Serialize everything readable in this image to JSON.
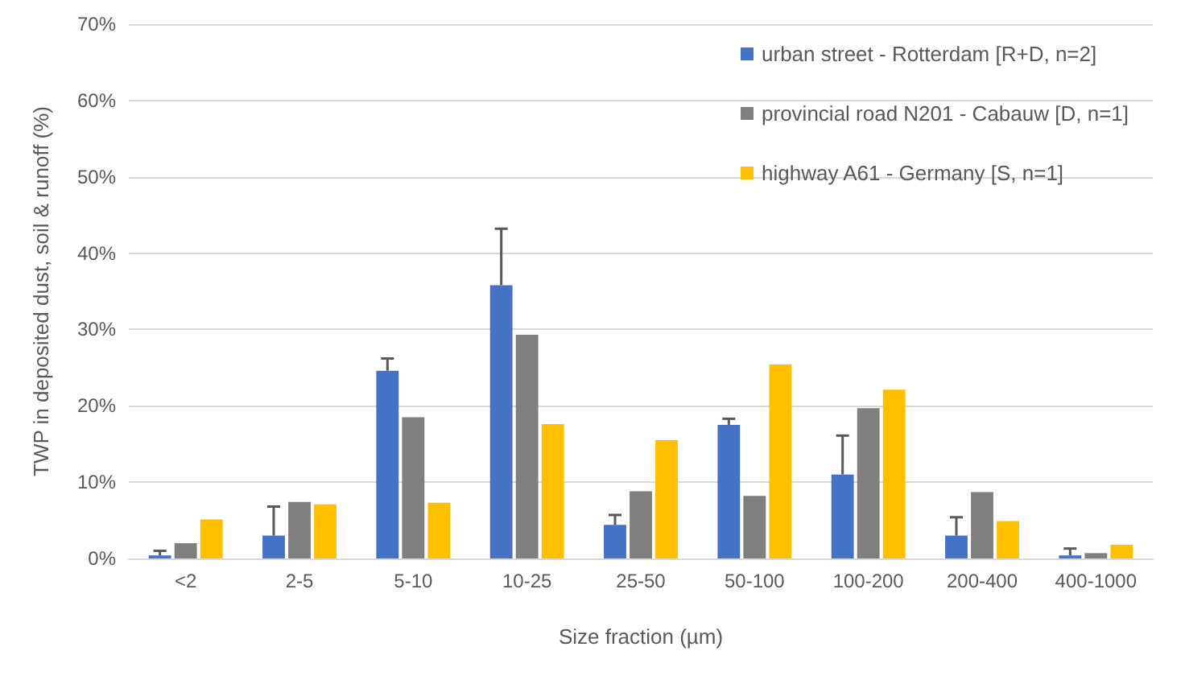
{
  "chart_data": {
    "type": "bar",
    "xlabel": "Size fraction (µm)",
    "ylabel": "TWP in deposited dust, soil & runoff (%)",
    "categories": [
      "<2",
      "2-5",
      "5-10",
      "10-25",
      "25-50",
      "50-100",
      "100-200",
      "200-400",
      "400-1000"
    ],
    "series": [
      {
        "name": "urban street - Rotterdam [R+D, n=2]",
        "color": "#4472c4",
        "values": [
          0.4,
          3.0,
          24.6,
          35.8,
          4.4,
          17.5,
          11.0,
          3.0,
          0.4
        ],
        "errors": [
          [
            0.4,
            1.0
          ],
          [
            3.0,
            6.8
          ],
          [
            24.6,
            26.2
          ],
          [
            35.8,
            43.2
          ],
          [
            4.4,
            5.7
          ],
          [
            17.5,
            18.3
          ],
          [
            11.0,
            16.1
          ],
          [
            3.0,
            5.4
          ],
          [
            0.4,
            1.3
          ]
        ]
      },
      {
        "name": "provincial road N201 - Cabauw [D, n=1]",
        "color": "#7f7f7f",
        "values": [
          2.0,
          7.4,
          18.5,
          29.3,
          8.8,
          8.2,
          19.7,
          8.7,
          0.7
        ]
      },
      {
        "name": "highway A61 - Germany [S, n=1]",
        "color": "#ffc000",
        "values": [
          5.1,
          7.1,
          7.3,
          17.6,
          15.5,
          25.4,
          22.1,
          4.9,
          1.8
        ]
      }
    ],
    "ylim": [
      0,
      70
    ],
    "yticks": [
      {
        "value": 0,
        "label": "0%"
      },
      {
        "value": 10,
        "label": "10%"
      },
      {
        "value": 20,
        "label": "20%"
      },
      {
        "value": 30,
        "label": "30%"
      },
      {
        "value": 40,
        "label": "40%"
      },
      {
        "value": 50,
        "label": "50%"
      },
      {
        "value": 60,
        "label": "60%"
      },
      {
        "value": 70,
        "label": "70%"
      }
    ],
    "grid": "y",
    "legend": "top right"
  }
}
